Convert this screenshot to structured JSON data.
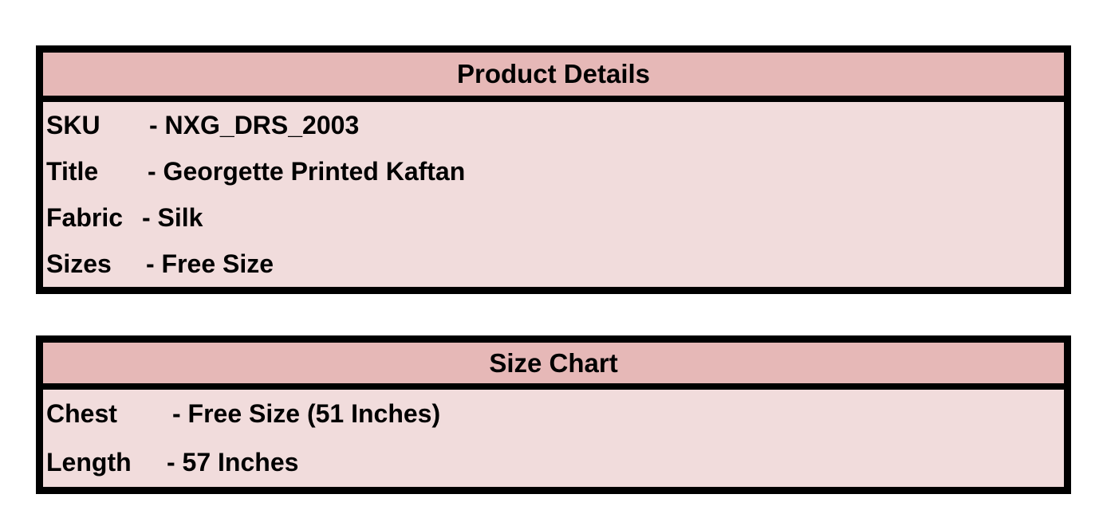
{
  "product_details": {
    "title": "Product Details",
    "rows": [
      {
        "label": "SKU",
        "value": "- NXG_DRS_2003"
      },
      {
        "label": "Title",
        "value": "- Georgette Printed Kaftan"
      },
      {
        "label": "Fabric",
        "value": "- Silk"
      },
      {
        "label": "Sizes",
        "value": "- Free Size"
      }
    ]
  },
  "size_chart": {
    "title": "Size Chart",
    "rows": [
      {
        "label": "Chest",
        "value": "- Free Size (51 Inches)"
      },
      {
        "label": "Length",
        "value": "- 57 Inches"
      }
    ]
  },
  "colors": {
    "header": "#e6b8b7",
    "body": "#f1dcdc",
    "border": "#000000"
  }
}
